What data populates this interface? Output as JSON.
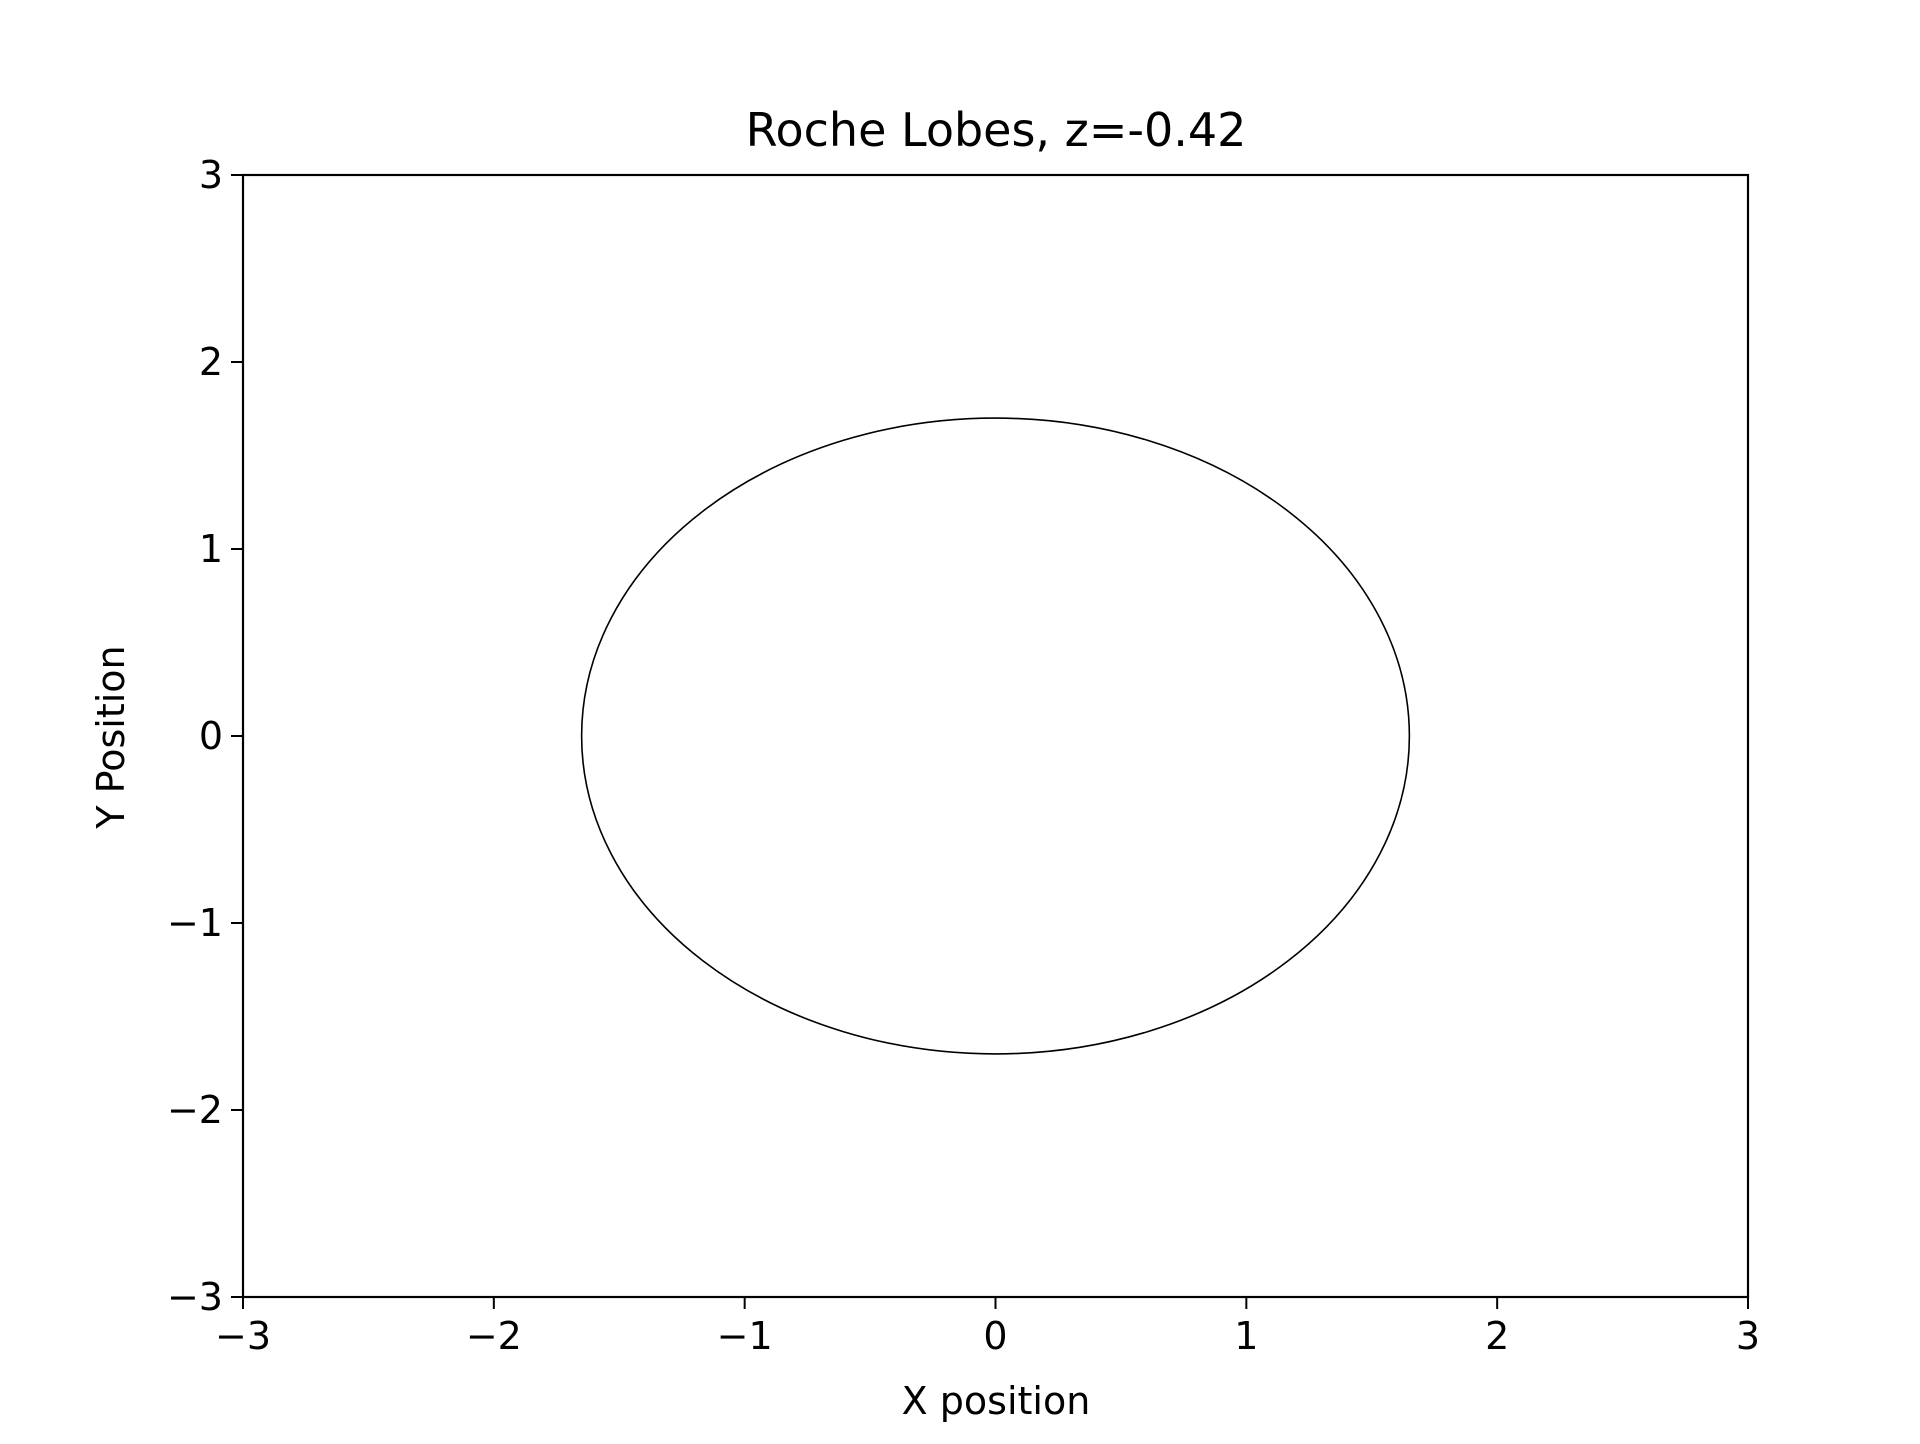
{
  "chart_data": {
    "type": "line",
    "title": "Roche Lobes, z=-0.42",
    "xlabel": "X position",
    "ylabel": "Y Position",
    "xlim": [
      -3,
      3
    ],
    "ylim": [
      -3,
      3
    ],
    "grid": false,
    "xticks": [
      -3,
      -2,
      -1,
      0,
      1,
      2,
      3
    ],
    "yticks": [
      -3,
      -2,
      -1,
      0,
      1,
      2,
      3
    ],
    "xtick_labels": [
      "−3",
      "−2",
      "−1",
      "0",
      "1",
      "2",
      "3"
    ],
    "ytick_labels": [
      "−3",
      "−2",
      "−1",
      "0",
      "1",
      "2",
      "3"
    ],
    "series": [
      {
        "shape": "closed contour (ellipse)",
        "center": [
          0,
          0
        ],
        "x_semi_axis": 1.65,
        "y_semi_axis": 1.7,
        "color": "#000000"
      }
    ]
  }
}
